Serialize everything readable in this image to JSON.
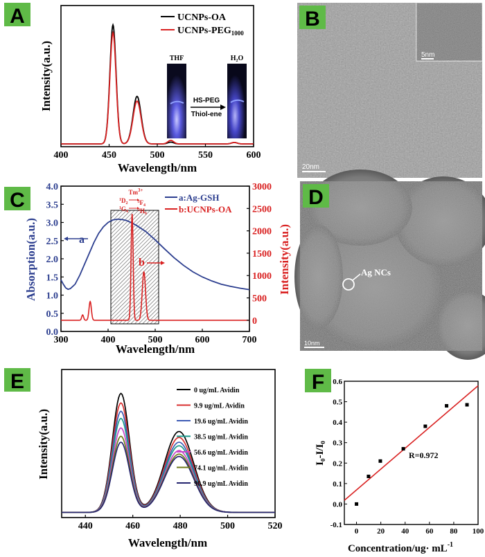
{
  "colors": {
    "badge_bg": "#5fba47",
    "red": "#d92121",
    "black": "#000000",
    "navy": "#2c3e8f",
    "tem_gray": "#7d7d7d"
  },
  "panels": {
    "A": {
      "badge": "A",
      "xlabel": "Wavelength/nm",
      "ylabel": "Intensity(a.u.)",
      "legend": [
        "UCNPs-OA",
        "UCNPs-PEG"
      ],
      "legend_sub": "1000",
      "inset": {
        "left_label": "THF",
        "right_label": "H₂O",
        "arrow_top": "HS-PEG",
        "arrow_bottom": "Thiol-ene"
      }
    },
    "B": {
      "badge": "B",
      "inset_scale": "5nm",
      "scale_bar": "20nm"
    },
    "C": {
      "badge": "C",
      "xlabel": "Wavelength/nm",
      "ylabel_left": "Absorption(a.u.)",
      "ylabel_right": "Intensity(a.u.)",
      "legend": [
        "a:Ag-GSH",
        "b:UCNPs-OA"
      ],
      "annot_a": "a",
      "annot_b": "b",
      "transition_tm": "Tm",
      "transition_tm_sup": "3+",
      "transition_1": "D",
      "transition_1_sub": "2",
      "transition_1_to": "F",
      "transition_1_to_sub": "4",
      "transition_2": "G",
      "transition_2_sub": "4",
      "transition_2_to": "H",
      "transition_2_to_sub": "6",
      "sup1": "1",
      "sup2": "3",
      "sup3": "1",
      "sup4": "3"
    },
    "D": {
      "badge": "D",
      "annotation": "Ag NCs",
      "scale_bar": "10nm"
    },
    "E": {
      "badge": "E",
      "xlabel": "Wavelength/nm",
      "ylabel": "Intensity(a.u.)",
      "legend": [
        "0      ug/mL  Avidin",
        "9.9   ug/mL  Avidin",
        "19.6  ug/mL  Avidin",
        "38.5  ug/mL  Avidin",
        "56.6  ug/mL  Avidin",
        "74.1  ug/mL  Avidin",
        "90.9  ug/mL  Avidin"
      ]
    },
    "F": {
      "badge": "F",
      "xlabel": "Concentration/ug· mL",
      "xlabel_sup": "-1",
      "ylabel": "I₀-I/I₀",
      "annotation": "R=0.972"
    }
  },
  "chart_data": [
    {
      "panel": "A",
      "type": "line",
      "xlim": [
        400,
        600
      ],
      "xticks": [
        400,
        450,
        500,
        550,
        600
      ],
      "series": [
        {
          "name": "UCNPs-OA",
          "color": "#000000",
          "peaks": [
            {
              "x": 454,
              "h": 1.0,
              "w": 3.2
            },
            {
              "x": 479,
              "h": 0.4,
              "w": 4.2
            },
            {
              "x": 514,
              "h": 0.015,
              "w": 3
            },
            {
              "x": 580,
              "h": 0.012,
              "w": 3
            }
          ]
        },
        {
          "name": "UCNPs-PEG1000",
          "color": "#d92121",
          "peaks": [
            {
              "x": 454,
              "h": 0.935,
              "w": 3.2
            },
            {
              "x": 479,
              "h": 0.36,
              "w": 4.2
            },
            {
              "x": 514,
              "h": 0.03,
              "w": 3
            },
            {
              "x": 580,
              "h": 0.012,
              "w": 3
            }
          ]
        }
      ]
    },
    {
      "panel": "C",
      "type": "line",
      "xlim": [
        300,
        700
      ],
      "xticks": [
        300,
        400,
        500,
        600,
        700
      ],
      "ylim_left": [
        0.0,
        4.0
      ],
      "yticks_left": [
        "0.0",
        "0.5",
        "1.0",
        "1.5",
        "2.0",
        "2.5",
        "3.0",
        "3.5",
        "4.0"
      ],
      "ylim_right": [
        -250,
        3000
      ],
      "yticks_right": [
        0,
        500,
        1000,
        1500,
        2000,
        2500,
        3000
      ],
      "shaded_region": [
        407,
        506
      ],
      "series": [
        {
          "name": "a:Ag-GSH",
          "axis": "left",
          "color": "#2c3e8f",
          "x": [
            300,
            305,
            310,
            315,
            320,
            330,
            340,
            350,
            360,
            370,
            380,
            390,
            400,
            410,
            420,
            430,
            440,
            450,
            460,
            480,
            500,
            520,
            540,
            560,
            580,
            600,
            620,
            640,
            660,
            680,
            700
          ],
          "y": [
            1.42,
            1.3,
            1.2,
            1.16,
            1.18,
            1.3,
            1.55,
            1.85,
            2.15,
            2.45,
            2.7,
            2.88,
            3.0,
            3.07,
            3.09,
            3.08,
            3.05,
            2.99,
            2.92,
            2.75,
            2.52,
            2.27,
            2.03,
            1.82,
            1.64,
            1.5,
            1.39,
            1.3,
            1.24,
            1.19,
            1.15
          ]
        },
        {
          "name": "b:UCNPs-OA",
          "axis": "right",
          "color": "#d92121",
          "baseline": 0,
          "peaks": [
            {
              "x": 346,
              "h": 120,
              "w": 2
            },
            {
              "x": 362,
              "h": 420,
              "w": 2.5
            },
            {
              "x": 451,
              "h": 2380,
              "w": 2.2
            },
            {
              "x": 476,
              "h": 1080,
              "w": 3.5
            }
          ]
        }
      ]
    },
    {
      "panel": "E",
      "type": "line",
      "xlim": [
        430,
        520
      ],
      "xticks": [
        440,
        460,
        480,
        500,
        520
      ],
      "series": [
        {
          "name": "0 ug/mL Avidin",
          "color": "#000000",
          "p1": 1.0,
          "p2": 0.68
        },
        {
          "name": "9.9 ug/mL Avidin",
          "color": "#d93030",
          "p1": 0.92,
          "p2": 0.63
        },
        {
          "name": "19.6 ug/mL Avidin",
          "color": "#3c5ab4",
          "p1": 0.85,
          "p2": 0.59
        },
        {
          "name": "38.5 ug/mL Avidin",
          "color": "#1c9a8c",
          "p1": 0.79,
          "p2": 0.56
        },
        {
          "name": "56.6 ug/mL Avidin",
          "color": "#c845c8",
          "p1": 0.71,
          "p2": 0.52
        },
        {
          "name": "74.1 ug/mL Avidin",
          "color": "#707a18",
          "p1": 0.64,
          "p2": 0.49
        },
        {
          "name": "90.9 ug/mL Avidin",
          "color": "#24246e",
          "p1": 0.59,
          "p2": 0.47
        }
      ]
    },
    {
      "panel": "F",
      "type": "scatter",
      "xlim": [
        -10,
        100
      ],
      "xticks": [
        0,
        20,
        40,
        60,
        80,
        100
      ],
      "ylim": [
        -0.1,
        0.6
      ],
      "yticks": [
        "-0.1",
        "0.0",
        "0.1",
        "0.2",
        "0.3",
        "0.4",
        "0.5",
        "0.6"
      ],
      "points": {
        "x": [
          0,
          9.9,
          19.6,
          38.5,
          56.6,
          74.1,
          90.9
        ],
        "y": [
          0.0,
          0.135,
          0.21,
          0.27,
          0.38,
          0.48,
          0.485
        ]
      },
      "fit": {
        "x": [
          -10,
          100
        ],
        "y": [
          0.018,
          0.578
        ]
      }
    }
  ]
}
